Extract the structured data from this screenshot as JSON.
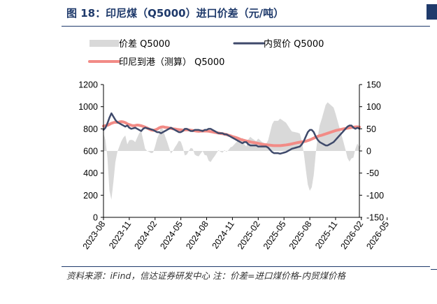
{
  "header": {
    "title": "图 18：印尼煤（Q5000）进口价差（元/吨）"
  },
  "footer": {
    "source": "资料来源：iFind，信达证券研发中心 注：价差=进口煤价格-内贸煤价格"
  },
  "colors": {
    "title": "#1f3a6b",
    "spread_area": "#d9d9d9",
    "domestic_line": "#3f4a6b",
    "indo_line": "#f28b86"
  },
  "chart_data": {
    "type": "line",
    "legend": [
      {
        "label": "价差 Q5000",
        "kind": "area",
        "color": "#d9d9d9"
      },
      {
        "label": "内贸价 Q5000",
        "kind": "line",
        "color": "#3f4a6b"
      },
      {
        "label": "印尼到港（测算） Q5000",
        "kind": "line",
        "color": "#f28b86"
      }
    ],
    "legend_position": "top-left",
    "grid": false,
    "left_axis": {
      "ylim": [
        0,
        1200
      ],
      "ticks": [
        0,
        200,
        400,
        600,
        800,
        1000,
        1200
      ]
    },
    "right_axis": {
      "ylim": [
        -150,
        150
      ],
      "ticks": [
        -150,
        -100,
        -50,
        0,
        50,
        100,
        150
      ]
    },
    "x_tick_labels": [
      "2023-08",
      "2023-11",
      "2024-02",
      "2024-05",
      "2024-08",
      "2024-11",
      "2025-02",
      "2025-05",
      "2025-08",
      "2025-11",
      "2026-02",
      "2026-05"
    ],
    "x_tick_index": [
      0,
      13,
      26,
      39,
      52,
      65,
      78,
      91,
      104,
      117,
      130,
      143
    ],
    "series": [
      {
        "name": "内贸价 Q5000",
        "axis": "left",
        "values": [
          790,
          810,
          850,
          900,
          940,
          910,
          880,
          860,
          850,
          840,
          830,
          820,
          830,
          810,
          800,
          805,
          810,
          800,
          790,
          780,
          800,
          810,
          805,
          800,
          795,
          790,
          780,
          770,
          770,
          760,
          770,
          780,
          790,
          800,
          810,
          800,
          790,
          780,
          770,
          770,
          780,
          800,
          800,
          790,
          780,
          780,
          790,
          790,
          790,
          785,
          780,
          790,
          790,
          800,
          800,
          790,
          780,
          770,
          760,
          760,
          760,
          750,
          750,
          740,
          730,
          720,
          710,
          700,
          690,
          680,
          670,
          680,
          680,
          660,
          650,
          650,
          650,
          650,
          640,
          640,
          640,
          640,
          640,
          630,
          610,
          590,
          580,
          580,
          580,
          575,
          580,
          585,
          590,
          600,
          610,
          620,
          625,
          630,
          635,
          640,
          660,
          690,
          730,
          770,
          790,
          790,
          770,
          730,
          700,
          680,
          670,
          660,
          650,
          650,
          660,
          670,
          680,
          700,
          720,
          740,
          760,
          780,
          800,
          820,
          830,
          830,
          810,
          800,
          810,
          800
        ]
      },
      {
        "name": "印尼到港（测算） Q5000",
        "axis": "left",
        "values": [
          825,
          828,
          832,
          840,
          850,
          856,
          860,
          858,
          862,
          865,
          862,
          856,
          845,
          838,
          832,
          828,
          830,
          834,
          832,
          828,
          822,
          815,
          808,
          798,
          790,
          786,
          790,
          797,
          808,
          816,
          818,
          814,
          812,
          808,
          804,
          800,
          798,
          795,
          793,
          791,
          788,
          790,
          792,
          790,
          787,
          785,
          782,
          779,
          778,
          779,
          780,
          781,
          780,
          778,
          775,
          772,
          768,
          765,
          762,
          758,
          756,
          752,
          748,
          742,
          738,
          730,
          725,
          720,
          713,
          705,
          700,
          695,
          690,
          686,
          682,
          678,
          675,
          672,
          668,
          664,
          660,
          658,
          656,
          654,
          652,
          650,
          648,
          648,
          648,
          648,
          650,
          652,
          654,
          657,
          660,
          664,
          668,
          672,
          676,
          679,
          682,
          684,
          688,
          694,
          700,
          708,
          716,
          724,
          732,
          738,
          742,
          748,
          754,
          760,
          766,
          772,
          778,
          784,
          788,
          792,
          796,
          800,
          803,
          806,
          809,
          812,
          815,
          817,
          818,
          816
        ]
      },
      {
        "name": "价差 Q5000",
        "axis": "right",
        "values": [
          40,
          25,
          -15,
          -90,
          -110,
          -70,
          -25,
          -2,
          10,
          22,
          30,
          35,
          15,
          24,
          25,
          24,
          20,
          30,
          40,
          45,
          25,
          5,
          0,
          -2,
          -5,
          -4,
          10,
          27,
          38,
          56,
          48,
          34,
          22,
          8,
          -6,
          0,
          8,
          15,
          23,
          21,
          8,
          -10,
          -8,
          0,
          7,
          5,
          -8,
          -11,
          -12,
          -6,
          0,
          -9,
          -10,
          -22,
          -25,
          -18,
          -12,
          -5,
          2,
          -2,
          -4,
          2,
          -2,
          2,
          8,
          10,
          15,
          20,
          23,
          25,
          30,
          15,
          10,
          26,
          32,
          28,
          25,
          22,
          28,
          24,
          20,
          18,
          16,
          24,
          42,
          60,
          68,
          68,
          68,
          73,
          70,
          67,
          64,
          57,
          50,
          44,
          43,
          42,
          41,
          39,
          22,
          -6,
          -42,
          -76,
          -90,
          -82,
          -54,
          -6,
          32,
          58,
          72,
          88,
          104,
          110,
          106,
          102,
          98,
          84,
          68,
          52,
          36,
          20,
          3,
          -16,
          -24,
          -17,
          -15,
          5,
          17,
          8,
          16
        ]
      }
    ]
  }
}
